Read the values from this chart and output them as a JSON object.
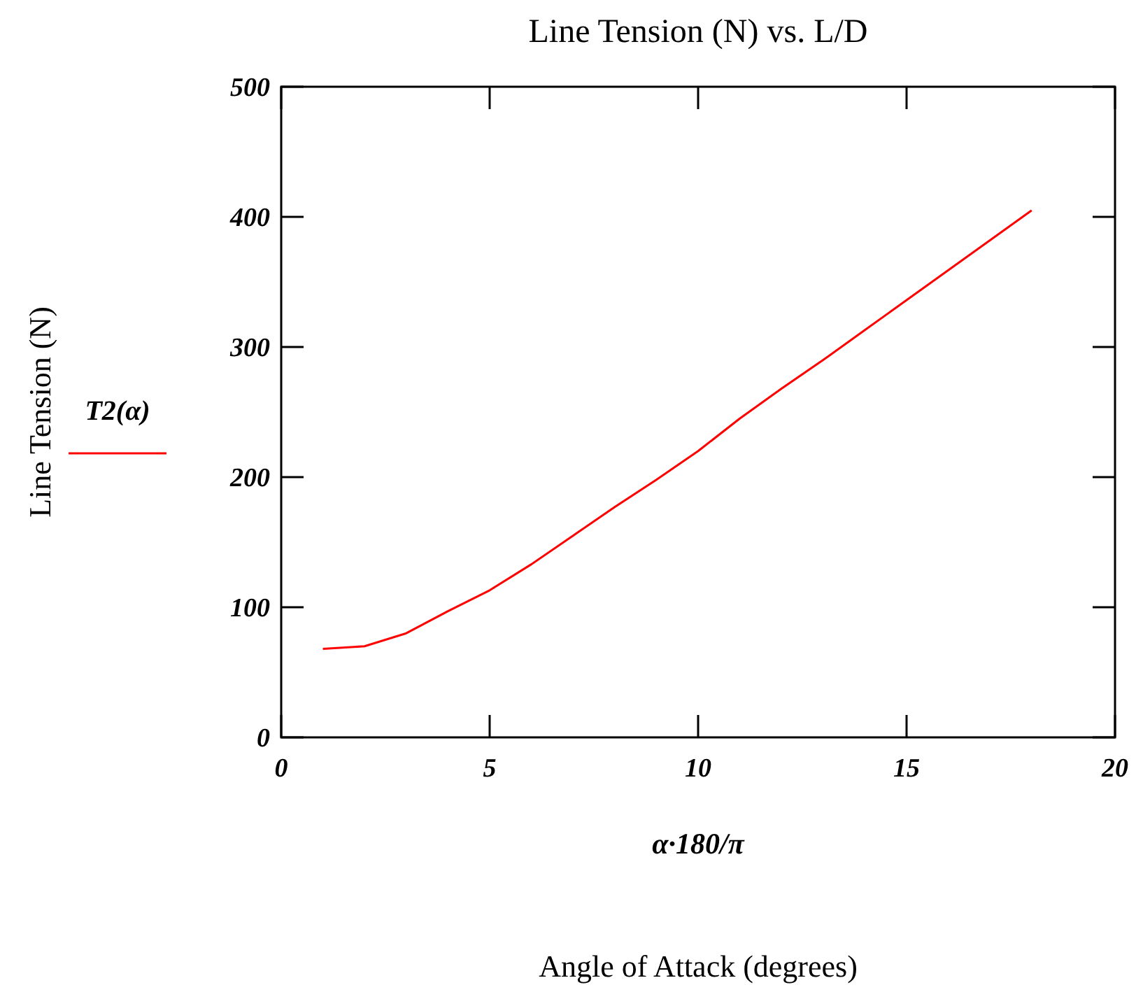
{
  "chart_data": {
    "type": "line",
    "title": "Line Tension (N) vs. L/D",
    "xlabel": "α·180/π",
    "annotations": [
      "Angle of Attack (degrees)",
      "Line Tension (N)"
    ],
    "x": [
      1,
      2,
      3,
      4,
      5,
      6,
      7,
      8,
      9,
      10,
      11,
      12,
      13,
      14,
      15,
      16,
      17,
      18
    ],
    "series": [
      {
        "name": "T2(α)",
        "color": "#ff0000",
        "values": [
          68,
          70,
          80,
          97,
          113,
          133,
          155,
          177,
          198,
          220,
          245,
          268,
          290,
          313,
          336,
          359,
          382,
          405
        ]
      }
    ],
    "xlim": [
      0,
      20
    ],
    "xticks": [
      0,
      5,
      10,
      15,
      20
    ],
    "ylim": [
      0,
      500
    ],
    "yticks": [
      0,
      100,
      200,
      300,
      400,
      500
    ],
    "grid": false,
    "legend": "left",
    "marker": "none",
    "line_style": "solid"
  }
}
